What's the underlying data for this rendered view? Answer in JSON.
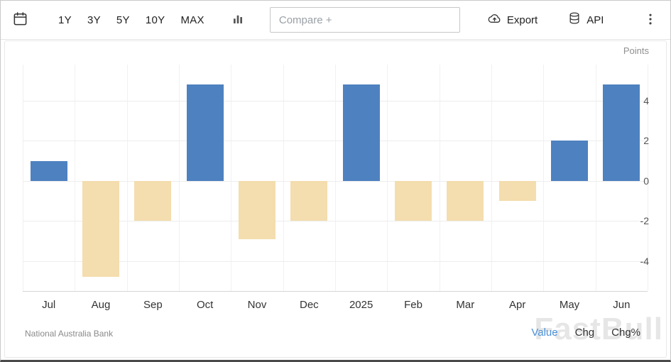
{
  "toolbar": {
    "ranges": [
      "1Y",
      "3Y",
      "5Y",
      "10Y",
      "MAX"
    ],
    "compare_placeholder": "Compare +",
    "export_label": "Export",
    "api_label": "API",
    "icons": [
      "calendar-icon",
      "bar-chart-type-icon",
      "export-cloud-icon",
      "api-database-icon",
      "kebab-menu-icon"
    ]
  },
  "chart": {
    "unit_label": "Points",
    "source": "National Australia Bank",
    "watermark": "FastBull",
    "toggles": [
      {
        "label": "Value",
        "active": true
      },
      {
        "label": "Chg",
        "active": false
      },
      {
        "label": "Chg%",
        "active": false
      }
    ]
  },
  "chart_data": {
    "type": "bar",
    "categories": [
      "Jul",
      "Aug",
      "Sep",
      "Oct",
      "Nov",
      "Dec",
      "2025",
      "Feb",
      "Mar",
      "Apr",
      "May",
      "Jun"
    ],
    "values": [
      1,
      -4.8,
      -2,
      4.8,
      -2.9,
      -2,
      4.8,
      -2,
      -2,
      -1,
      2,
      4.8
    ],
    "title": "",
    "xlabel": "",
    "ylabel": "Points",
    "ylim": [
      -5.5,
      5.8
    ],
    "yticks": [
      4,
      2,
      0,
      -2,
      -4
    ],
    "grid": true,
    "legend_position": "none",
    "positive_color": "#4e81c0",
    "negative_color": "#f4ddae"
  }
}
